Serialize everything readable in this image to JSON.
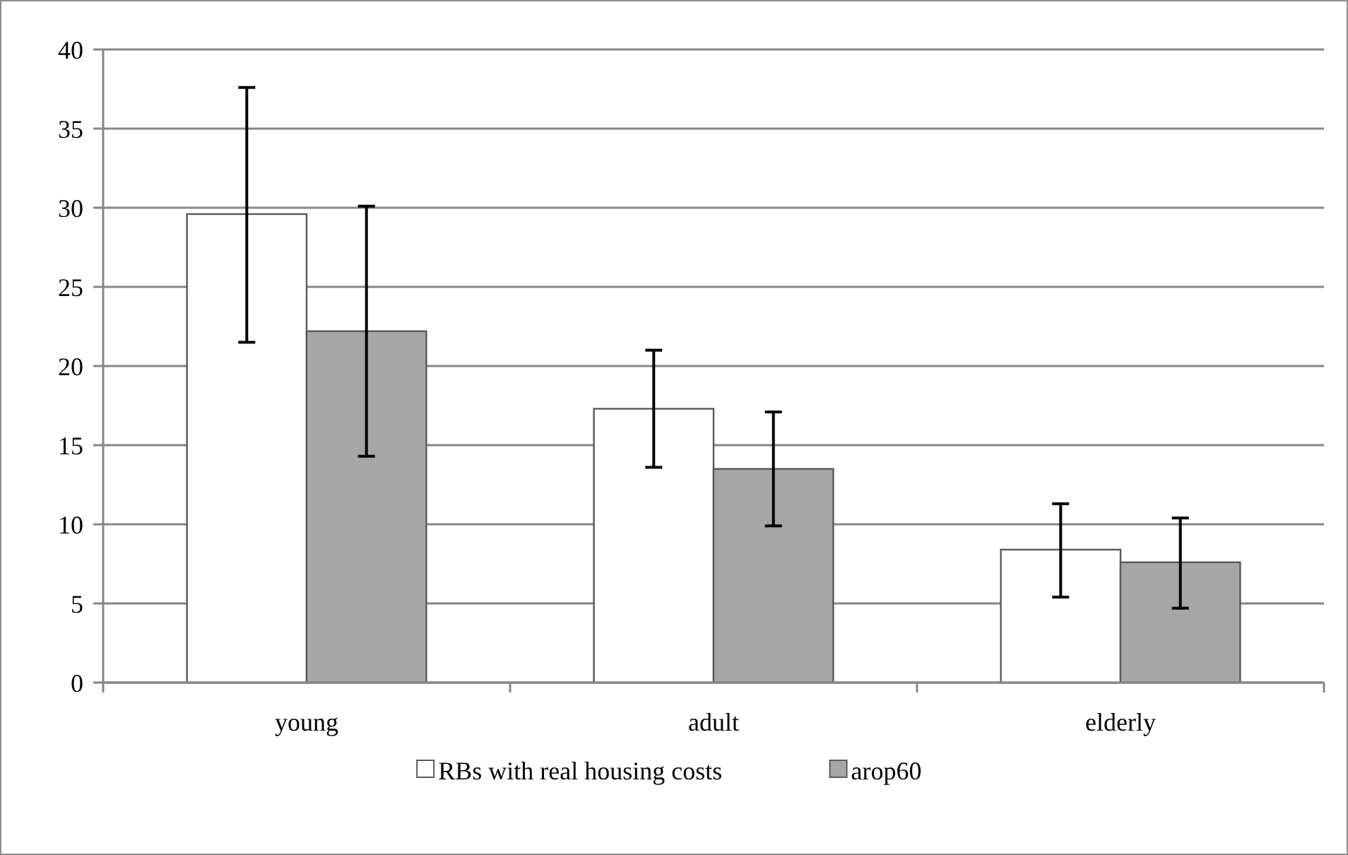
{
  "chart_data": {
    "type": "bar",
    "categories": [
      "young",
      "adult",
      "elderly"
    ],
    "series": [
      {
        "name": "RBs with real housing costs",
        "color": "#ffffff",
        "values": [
          29.6,
          17.3,
          8.4
        ],
        "errors": [
          [
            21.5,
            37.6
          ],
          [
            13.6,
            21.0
          ],
          [
            5.4,
            11.3
          ]
        ]
      },
      {
        "name": "arop60",
        "color": "#a6a6a6",
        "values": [
          22.2,
          13.5,
          7.6
        ],
        "errors": [
          [
            14.3,
            30.1
          ],
          [
            9.9,
            17.1
          ],
          [
            4.7,
            10.4
          ]
        ]
      }
    ],
    "ylim": [
      0,
      40
    ],
    "yticks": [
      0,
      5,
      10,
      15,
      20,
      25,
      30,
      35,
      40
    ],
    "grid": "y",
    "legend": "bottom"
  }
}
